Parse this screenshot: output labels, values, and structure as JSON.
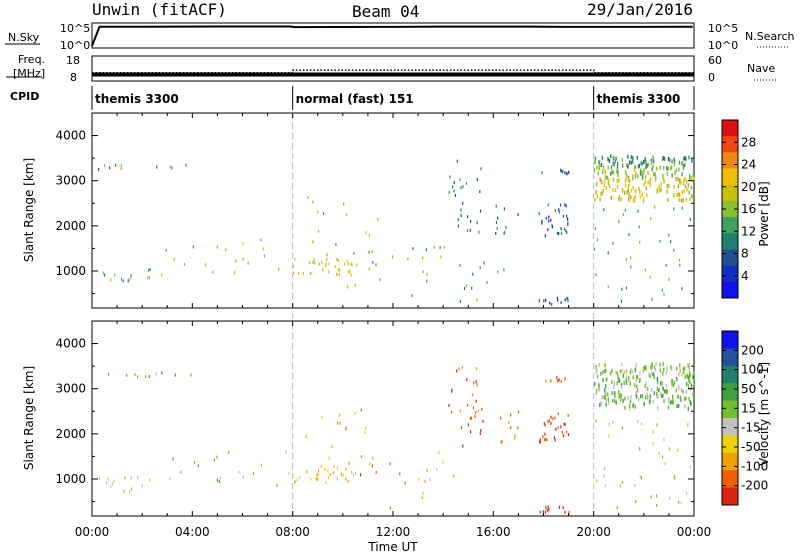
{
  "header": {
    "station": "Unwin (fitACF)",
    "beam": "Beam 04",
    "date": "29/Jan/2016"
  },
  "panels": {
    "nsky_label": "N.Sky",
    "nsearch_label": "N.Search",
    "nsky_ticks": [
      "10^5",
      "10^0"
    ],
    "nsearch_ticks": [
      "10^5",
      "10^0"
    ],
    "freq_label_1": "Freq.",
    "freq_label_2": "[MHz]",
    "freq_ticks": [
      "18",
      "8"
    ],
    "nave_label": "Nave",
    "nave_ticks": [
      "60",
      "0"
    ],
    "cpid_label": "CPID",
    "cpid_segments": [
      {
        "label": "themis 3300",
        "start_hour": 0,
        "end_hour": 8
      },
      {
        "label": "normal (fast) 151",
        "start_hour": 8,
        "end_hour": 20
      },
      {
        "label": "themis 3300",
        "start_hour": 20,
        "end_hour": 24
      }
    ]
  },
  "x_axis": {
    "label": "Time UT",
    "ticks": [
      "00:00",
      "04:00",
      "08:00",
      "12:00",
      "16:00",
      "20:00",
      "00:00"
    ],
    "hours": [
      0,
      4,
      8,
      12,
      16,
      20,
      24
    ]
  },
  "power_colorbar": {
    "label": "Power [dB]",
    "ticks": [
      "28",
      "24",
      "20",
      "16",
      "12",
      "8",
      "4"
    ],
    "colors": [
      "#e01010",
      "#f04810",
      "#f08810",
      "#f0c000",
      "#c8c000",
      "#88c030",
      "#40a060",
      "#208070",
      "#205090",
      "#1030c0",
      "#1010f0"
    ]
  },
  "velocity_colorbar": {
    "label": "Velocity [m s^-1]",
    "ticks": [
      "200",
      "100",
      "50",
      "15",
      "-15",
      "-50",
      "-100",
      "-200"
    ],
    "colors": [
      "#1010f0",
      "#2050a0",
      "#208070",
      "#40a040",
      "#70c030",
      "#c0c0c0",
      "#f0d000",
      "#f0a000",
      "#f06000",
      "#e02010"
    ]
  },
  "chart_data": [
    {
      "type": "line",
      "title": "N.Sky / N.Search",
      "ylabel": "N.Sky",
      "x_unit": "hours UT",
      "xlim": [
        0,
        24
      ],
      "series": [
        {
          "name": "N.Sky",
          "x": [
            0,
            0.3,
            2,
            5,
            7.9,
            8.1,
            12,
            14,
            17.5,
            18.8,
            20.5,
            23.95
          ],
          "y": [
            1,
            100000,
            100000,
            120000,
            120000,
            80000,
            90000,
            110000,
            110000,
            90000,
            95000,
            100000
          ]
        }
      ]
    },
    {
      "type": "line",
      "title": "Freq. / Nave",
      "x_unit": "hours UT",
      "xlim": [
        0,
        24
      ],
      "series": [
        {
          "name": "Freq.",
          "unit": "MHz",
          "x": [
            0,
            24
          ],
          "y": [
            10.5,
            10.5
          ]
        },
        {
          "name": "Nave",
          "x": [
            0,
            8,
            8,
            20,
            20,
            24
          ],
          "y": [
            20,
            20,
            27,
            27,
            20,
            20
          ]
        }
      ]
    },
    {
      "type": "heatmap",
      "title": "Power",
      "xlabel": "Time UT",
      "ylabel": "Slant Range [km]",
      "x_unit": "hours UT",
      "xlim": [
        0,
        24
      ],
      "ylim": [
        180,
        4500
      ],
      "y_ticks": [
        1000,
        2000,
        3000,
        4000
      ],
      "colorbar": {
        "label": "Power [dB]",
        "min": 0,
        "max": 32
      },
      "clusters": [
        {
          "t0": 0.1,
          "t1": 4.0,
          "r0": 3250,
          "r1": 3350,
          "value": 12,
          "count": 10
        },
        {
          "t0": 0.2,
          "t1": 2.4,
          "r0": 750,
          "r1": 1050,
          "value": 14,
          "count": 14
        },
        {
          "t0": 2.5,
          "t1": 8.0,
          "r0": 900,
          "r1": 1700,
          "value": 18,
          "count": 18
        },
        {
          "t0": 8.0,
          "t1": 10.5,
          "r0": 900,
          "r1": 1300,
          "value": 20,
          "count": 34
        },
        {
          "t0": 8.5,
          "t1": 11.5,
          "r0": 1300,
          "r1": 2700,
          "value": 18,
          "count": 14
        },
        {
          "t0": 10.0,
          "t1": 12.5,
          "r0": 600,
          "r1": 1600,
          "value": 16,
          "count": 10
        },
        {
          "t0": 12.5,
          "t1": 14.5,
          "r0": 400,
          "r1": 1600,
          "value": 14,
          "count": 12
        },
        {
          "t0": 14.2,
          "t1": 15.5,
          "r0": 1800,
          "r1": 3500,
          "value": 10,
          "count": 26
        },
        {
          "t0": 14.0,
          "t1": 16.5,
          "r0": 300,
          "r1": 1200,
          "value": 12,
          "count": 12
        },
        {
          "t0": 16.0,
          "t1": 17.0,
          "r0": 1800,
          "r1": 2500,
          "value": 10,
          "count": 10
        },
        {
          "t0": 17.8,
          "t1": 19.0,
          "r0": 1700,
          "r1": 2500,
          "value": 6,
          "count": 30
        },
        {
          "t0": 17.8,
          "t1": 19.0,
          "r0": 3150,
          "r1": 3250,
          "value": 6,
          "count": 8
        },
        {
          "t0": 17.8,
          "t1": 19.0,
          "r0": 250,
          "r1": 400,
          "value": 6,
          "count": 12
        },
        {
          "t0": 20.0,
          "t1": 24.0,
          "r0": 3300,
          "r1": 3550,
          "value": 12,
          "count": 70
        },
        {
          "t0": 20.0,
          "t1": 24.0,
          "r0": 3050,
          "r1": 3300,
          "value": 16,
          "count": 60
        },
        {
          "t0": 20.0,
          "t1": 24.0,
          "r0": 2550,
          "r1": 3050,
          "value": 20,
          "count": 110
        },
        {
          "t0": 20.0,
          "t1": 24.0,
          "r0": 300,
          "r1": 2500,
          "value": 13,
          "count": 40
        }
      ]
    },
    {
      "type": "heatmap",
      "title": "Velocity",
      "xlabel": "Time UT",
      "ylabel": "Slant Range [km]",
      "x_unit": "hours UT",
      "xlim": [
        0,
        24
      ],
      "ylim": [
        180,
        4500
      ],
      "y_ticks": [
        1000,
        2000,
        3000,
        4000
      ],
      "colorbar": {
        "label": "Velocity [m s^-1]",
        "min": -250,
        "max": 250
      },
      "clusters": [
        {
          "t0": 0.1,
          "t1": 4.0,
          "r0": 3250,
          "r1": 3350,
          "value": 60,
          "count": 10
        },
        {
          "t0": 0.2,
          "t1": 2.4,
          "r0": 700,
          "r1": 1050,
          "value": -60,
          "count": 14
        },
        {
          "t0": 2.5,
          "t1": 8.0,
          "r0": 850,
          "r1": 1700,
          "value": 30,
          "count": 18
        },
        {
          "t0": 8.0,
          "t1": 10.5,
          "r0": 900,
          "r1": 1300,
          "value": -80,
          "count": 30
        },
        {
          "t0": 8.5,
          "t1": 11.5,
          "r0": 1300,
          "r1": 2700,
          "value": -120,
          "count": 14
        },
        {
          "t0": 10.5,
          "t1": 13.0,
          "r0": 300,
          "r1": 1500,
          "value": -150,
          "count": 10
        },
        {
          "t0": 13.0,
          "t1": 14.5,
          "r0": 300,
          "r1": 1600,
          "value": -100,
          "count": 10
        },
        {
          "t0": 14.2,
          "t1": 15.6,
          "r0": 1700,
          "r1": 3500,
          "value": -180,
          "count": 30
        },
        {
          "t0": 16.0,
          "t1": 17.0,
          "r0": 1800,
          "r1": 2500,
          "value": -160,
          "count": 10
        },
        {
          "t0": 17.8,
          "t1": 19.0,
          "r0": 1800,
          "r1": 2500,
          "value": -200,
          "count": 30
        },
        {
          "t0": 17.8,
          "t1": 19.0,
          "r0": 3150,
          "r1": 3250,
          "value": -200,
          "count": 8
        },
        {
          "t0": 17.8,
          "t1": 19.0,
          "r0": 250,
          "r1": 400,
          "value": -220,
          "count": 12
        },
        {
          "t0": 20.0,
          "t1": 24.0,
          "r0": 3300,
          "r1": 3550,
          "value": 0,
          "count": 70
        },
        {
          "t0": 20.0,
          "t1": 24.0,
          "r0": 3050,
          "r1": 3300,
          "value": 40,
          "count": 60
        },
        {
          "t0": 20.0,
          "t1": 24.0,
          "r0": 2550,
          "r1": 3050,
          "value": 20,
          "count": 110
        },
        {
          "t0": 20.0,
          "t1": 24.0,
          "r0": 300,
          "r1": 2500,
          "value": -40,
          "count": 40
        }
      ]
    }
  ]
}
